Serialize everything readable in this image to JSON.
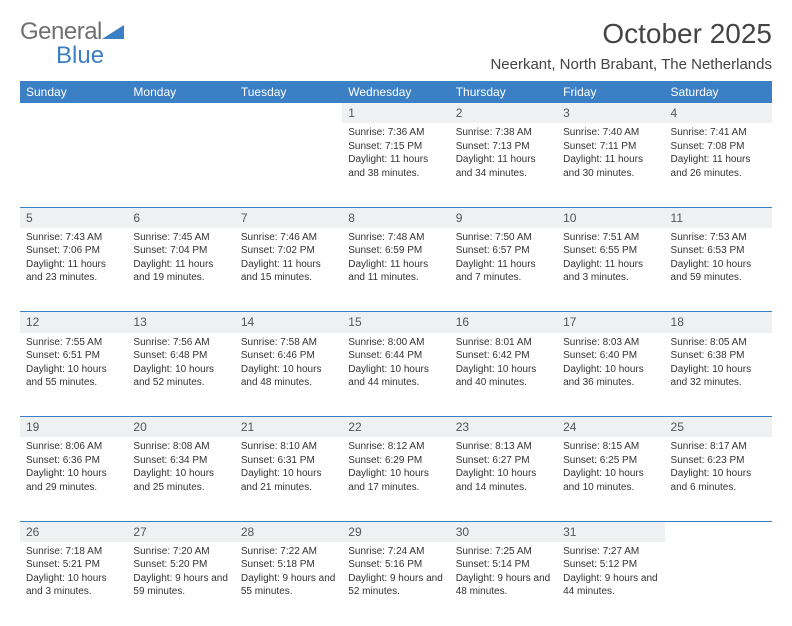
{
  "brand": {
    "part1": "General",
    "part2": "Blue"
  },
  "title": "October 2025",
  "location": "Neerkant, North Brabant, The Netherlands",
  "colors": {
    "accent": "#3b7fc4",
    "header_text": "#ffffff",
    "daynum_bg": "#eef0f2",
    "body_text": "#333333",
    "title_text": "#444444",
    "logo_gray": "#707070"
  },
  "fonts": {
    "title_size": 28,
    "location_size": 15,
    "dayheader_size": 12,
    "cell_size": 10
  },
  "day_headers": [
    "Sunday",
    "Monday",
    "Tuesday",
    "Wednesday",
    "Thursday",
    "Friday",
    "Saturday"
  ],
  "weeks": [
    [
      null,
      null,
      null,
      {
        "n": "1",
        "sunrise": "7:36 AM",
        "sunset": "7:15 PM",
        "daylight": "11 hours and 38 minutes."
      },
      {
        "n": "2",
        "sunrise": "7:38 AM",
        "sunset": "7:13 PM",
        "daylight": "11 hours and 34 minutes."
      },
      {
        "n": "3",
        "sunrise": "7:40 AM",
        "sunset": "7:11 PM",
        "daylight": "11 hours and 30 minutes."
      },
      {
        "n": "4",
        "sunrise": "7:41 AM",
        "sunset": "7:08 PM",
        "daylight": "11 hours and 26 minutes."
      }
    ],
    [
      {
        "n": "5",
        "sunrise": "7:43 AM",
        "sunset": "7:06 PM",
        "daylight": "11 hours and 23 minutes."
      },
      {
        "n": "6",
        "sunrise": "7:45 AM",
        "sunset": "7:04 PM",
        "daylight": "11 hours and 19 minutes."
      },
      {
        "n": "7",
        "sunrise": "7:46 AM",
        "sunset": "7:02 PM",
        "daylight": "11 hours and 15 minutes."
      },
      {
        "n": "8",
        "sunrise": "7:48 AM",
        "sunset": "6:59 PM",
        "daylight": "11 hours and 11 minutes."
      },
      {
        "n": "9",
        "sunrise": "7:50 AM",
        "sunset": "6:57 PM",
        "daylight": "11 hours and 7 minutes."
      },
      {
        "n": "10",
        "sunrise": "7:51 AM",
        "sunset": "6:55 PM",
        "daylight": "11 hours and 3 minutes."
      },
      {
        "n": "11",
        "sunrise": "7:53 AM",
        "sunset": "6:53 PM",
        "daylight": "10 hours and 59 minutes."
      }
    ],
    [
      {
        "n": "12",
        "sunrise": "7:55 AM",
        "sunset": "6:51 PM",
        "daylight": "10 hours and 55 minutes."
      },
      {
        "n": "13",
        "sunrise": "7:56 AM",
        "sunset": "6:48 PM",
        "daylight": "10 hours and 52 minutes."
      },
      {
        "n": "14",
        "sunrise": "7:58 AM",
        "sunset": "6:46 PM",
        "daylight": "10 hours and 48 minutes."
      },
      {
        "n": "15",
        "sunrise": "8:00 AM",
        "sunset": "6:44 PM",
        "daylight": "10 hours and 44 minutes."
      },
      {
        "n": "16",
        "sunrise": "8:01 AM",
        "sunset": "6:42 PM",
        "daylight": "10 hours and 40 minutes."
      },
      {
        "n": "17",
        "sunrise": "8:03 AM",
        "sunset": "6:40 PM",
        "daylight": "10 hours and 36 minutes."
      },
      {
        "n": "18",
        "sunrise": "8:05 AM",
        "sunset": "6:38 PM",
        "daylight": "10 hours and 32 minutes."
      }
    ],
    [
      {
        "n": "19",
        "sunrise": "8:06 AM",
        "sunset": "6:36 PM",
        "daylight": "10 hours and 29 minutes."
      },
      {
        "n": "20",
        "sunrise": "8:08 AM",
        "sunset": "6:34 PM",
        "daylight": "10 hours and 25 minutes."
      },
      {
        "n": "21",
        "sunrise": "8:10 AM",
        "sunset": "6:31 PM",
        "daylight": "10 hours and 21 minutes."
      },
      {
        "n": "22",
        "sunrise": "8:12 AM",
        "sunset": "6:29 PM",
        "daylight": "10 hours and 17 minutes."
      },
      {
        "n": "23",
        "sunrise": "8:13 AM",
        "sunset": "6:27 PM",
        "daylight": "10 hours and 14 minutes."
      },
      {
        "n": "24",
        "sunrise": "8:15 AM",
        "sunset": "6:25 PM",
        "daylight": "10 hours and 10 minutes."
      },
      {
        "n": "25",
        "sunrise": "8:17 AM",
        "sunset": "6:23 PM",
        "daylight": "10 hours and 6 minutes."
      }
    ],
    [
      {
        "n": "26",
        "sunrise": "7:18 AM",
        "sunset": "5:21 PM",
        "daylight": "10 hours and 3 minutes."
      },
      {
        "n": "27",
        "sunrise": "7:20 AM",
        "sunset": "5:20 PM",
        "daylight": "9 hours and 59 minutes."
      },
      {
        "n": "28",
        "sunrise": "7:22 AM",
        "sunset": "5:18 PM",
        "daylight": "9 hours and 55 minutes."
      },
      {
        "n": "29",
        "sunrise": "7:24 AM",
        "sunset": "5:16 PM",
        "daylight": "9 hours and 52 minutes."
      },
      {
        "n": "30",
        "sunrise": "7:25 AM",
        "sunset": "5:14 PM",
        "daylight": "9 hours and 48 minutes."
      },
      {
        "n": "31",
        "sunrise": "7:27 AM",
        "sunset": "5:12 PM",
        "daylight": "9 hours and 44 minutes."
      },
      null
    ]
  ],
  "labels": {
    "sunrise": "Sunrise: ",
    "sunset": "Sunset: ",
    "daylight": "Daylight: "
  }
}
